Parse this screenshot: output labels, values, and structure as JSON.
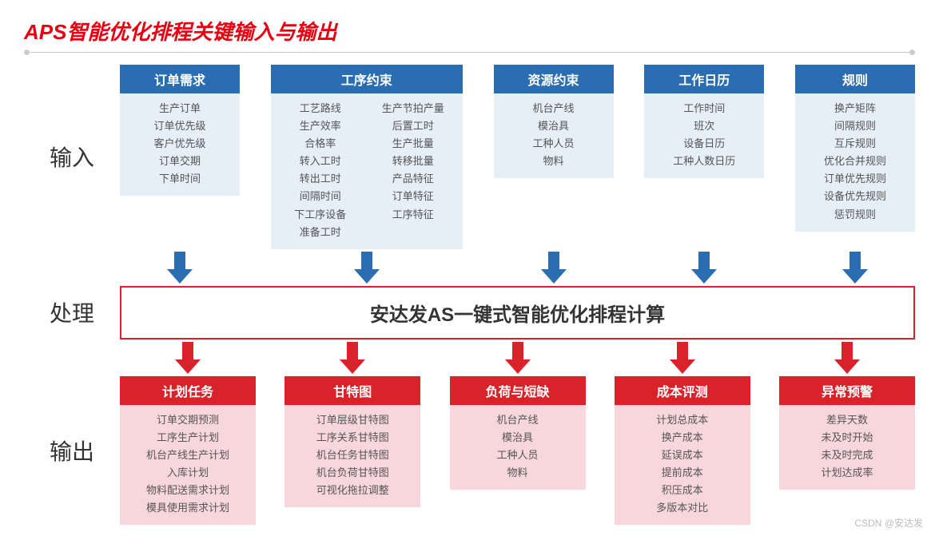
{
  "title": "APS智能优化排程关键输入与输出",
  "row_labels": {
    "input": "输入",
    "process": "处理",
    "output": "输出"
  },
  "colors": {
    "title": "#e60012",
    "blue_header": "#2a6db0",
    "blue_body": "#e6eef6",
    "red_header": "#d8232a",
    "red_body": "#f8d7dc",
    "process_border": "#d8232a",
    "text": "#555555"
  },
  "input_columns": [
    {
      "key": "order",
      "header": "订单需求",
      "items": [
        "生产订单",
        "订单优先级",
        "客户优先级",
        "订单交期",
        "下单时间"
      ]
    },
    {
      "key": "process",
      "header": "工序约束",
      "left": [
        "工艺路线",
        "生产效率",
        "合格率",
        "转入工时",
        "转出工时",
        "间隔时间",
        "下工序设备",
        "准备工时"
      ],
      "right": [
        "生产节拍产量",
        "后置工时",
        "生产批量",
        "转移批量",
        "产品特征",
        "订单特征",
        "工序特征"
      ]
    },
    {
      "key": "resource",
      "header": "资源约束",
      "items": [
        "机台产线",
        "模治具",
        "工种人员",
        "物料"
      ]
    },
    {
      "key": "calendar",
      "header": "工作日历",
      "items": [
        "工作时间",
        "班次",
        "设备日历",
        "工种人数日历"
      ]
    },
    {
      "key": "rule",
      "header": "规则",
      "items": [
        "换产矩阵",
        "间隔规则",
        "互斥规则",
        "优化合并规则",
        "订单优先规则",
        "设备优先规则",
        "惩罚规则"
      ]
    }
  ],
  "process_box": "安达发AS一键式智能优化排程计算",
  "output_columns": [
    {
      "key": "plan",
      "header": "计划任务",
      "items": [
        "订单交期预测",
        "工序生产计划",
        "机台产线生产计划",
        "入库计划",
        "物料配送需求计划",
        "模具使用需求计划"
      ]
    },
    {
      "key": "gantt",
      "header": "甘特图",
      "items": [
        "订单层级甘特图",
        "工序关系甘特图",
        "机台任务甘特图",
        "机台负荷甘特图",
        "可视化拖拉调整"
      ]
    },
    {
      "key": "load",
      "header": "负荷与短缺",
      "items": [
        "机台产线",
        "模治具",
        "工种人员",
        "物料"
      ]
    },
    {
      "key": "cost",
      "header": "成本评测",
      "items": [
        "计划总成本",
        "换产成本",
        "延误成本",
        "提前成本",
        "积压成本",
        "多版本对比"
      ]
    },
    {
      "key": "alert",
      "header": "异常预警",
      "items": [
        "差异天数",
        "未及时开始",
        "未及时完成",
        "计划达成率"
      ]
    }
  ],
  "watermark": "CSDN @安达发"
}
